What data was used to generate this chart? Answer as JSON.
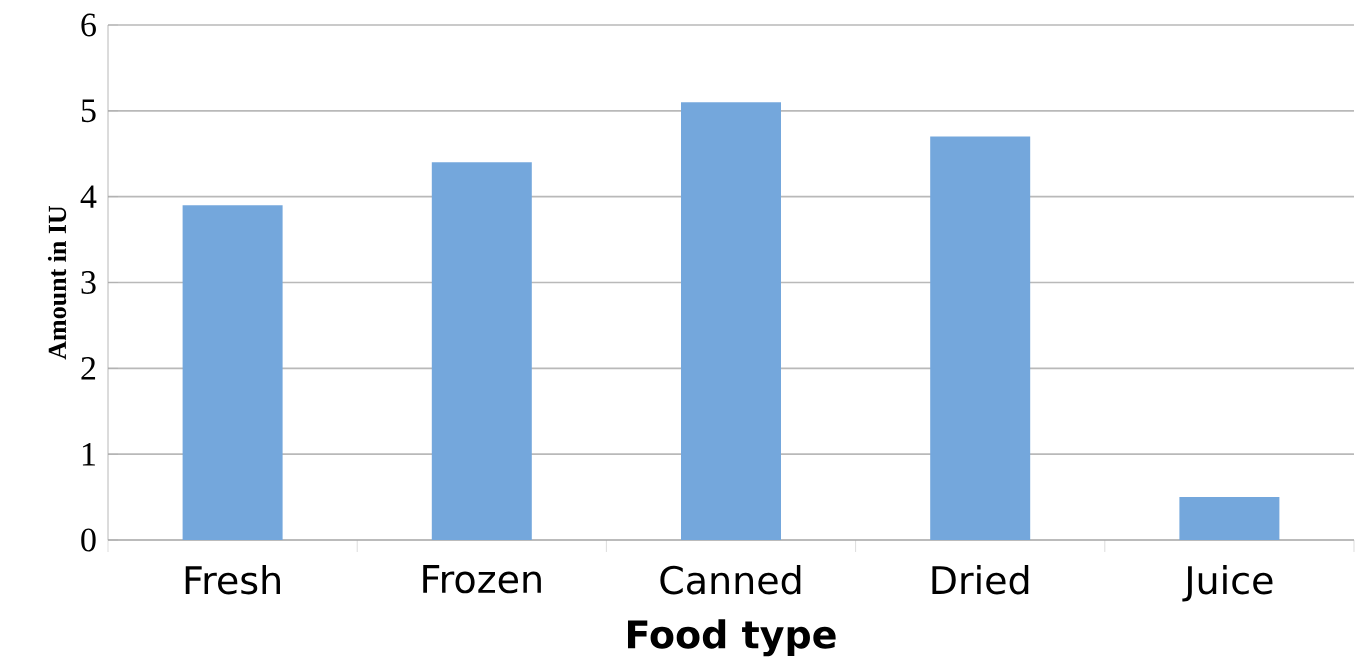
{
  "chart_data": {
    "type": "bar",
    "xlabel": "Food type",
    "ylabel": "Amount in IU",
    "categories": [
      "Fresh",
      "Frozen",
      "Canned",
      "Dried",
      "Juice"
    ],
    "values": [
      3.9,
      4.4,
      5.1,
      4.7,
      0.5
    ],
    "color": "#74a7dc",
    "ylim": [
      0,
      6
    ],
    "yticks": [
      0,
      1,
      2,
      3,
      4,
      5,
      6
    ],
    "grid": "y"
  }
}
